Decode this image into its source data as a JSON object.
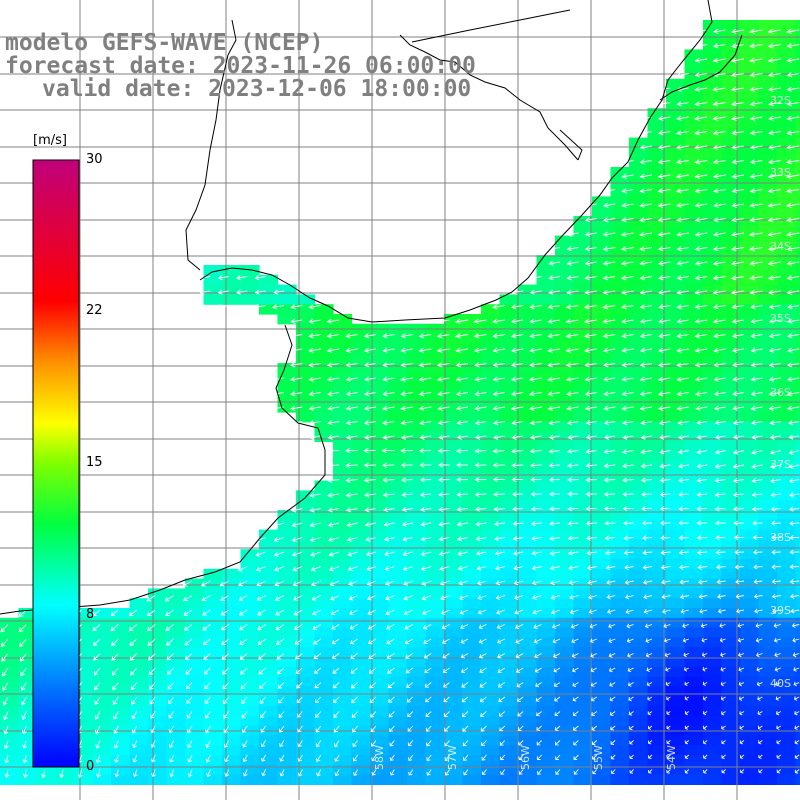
{
  "title": {
    "line1": "modelo GEFS-WAVE (NCEP)",
    "line2": "forecast date: 2023-11-26 06:00:00",
    "line3": "valid date: 2023-12-06 18:00:00"
  },
  "colorbar": {
    "unit": "[m/s]",
    "ticks": [
      "30",
      "22",
      "15",
      "8",
      "0"
    ],
    "tick_values": [
      30,
      22,
      15,
      8,
      0
    ],
    "range": [
      0,
      30
    ],
    "stops": [
      {
        "v": 0,
        "c": "#0000ff"
      },
      {
        "v": 4,
        "c": "#0078ff"
      },
      {
        "v": 8,
        "c": "#00ffff"
      },
      {
        "v": 12,
        "c": "#00ff40"
      },
      {
        "v": 15,
        "c": "#7fff00"
      },
      {
        "v": 17,
        "c": "#ffff00"
      },
      {
        "v": 20,
        "c": "#ff9000"
      },
      {
        "v": 23,
        "c": "#ff0000"
      },
      {
        "v": 30,
        "c": "#c0007a"
      }
    ]
  },
  "axes": {
    "lat_labels": [
      "32S",
      "33S",
      "34S",
      "35S",
      "36S",
      "37S",
      "38S",
      "39S",
      "40S"
    ],
    "lat_values": [
      -32,
      -33,
      -34,
      -35,
      -36,
      -37,
      -38,
      -39,
      -40
    ],
    "lon_labels": [
      "58W",
      "57W",
      "56W",
      "55W",
      "54W"
    ],
    "lon_values": [
      -58,
      -57,
      -56,
      -55,
      -54
    ],
    "lon_range": [
      -63,
      -52.4
    ],
    "lat_range": [
      -30.6,
      -41.3
    ]
  },
  "colors": {
    "land": "#ffffff",
    "coast": "#000000",
    "grid": "#808080",
    "arrow": "#ffffff",
    "title": "#808080"
  }
}
